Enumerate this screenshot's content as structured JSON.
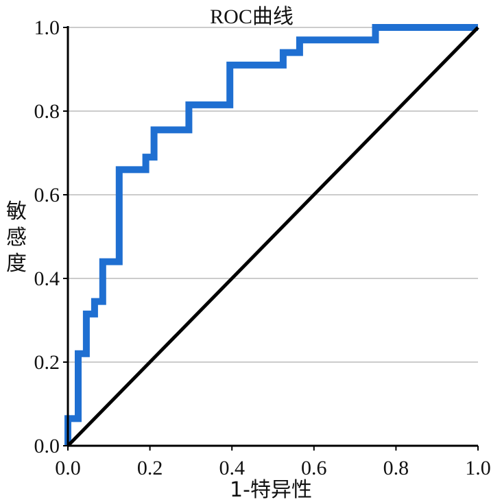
{
  "chart_data": {
    "type": "line",
    "title": "ROC曲线",
    "xlabel": "1-特异性",
    "ylabel": "敏感度",
    "xlim": [
      0,
      1
    ],
    "ylim": [
      0,
      1
    ],
    "xticks": [
      "0.0",
      "0.2",
      "0.4",
      "0.6",
      "0.8",
      "1.0"
    ],
    "yticks": [
      "0.0",
      "0.2",
      "0.4",
      "0.6",
      "0.8",
      "1.0"
    ],
    "grid": "horizontal",
    "series": [
      {
        "color": "#1f6fd1",
        "x": [
          0.0,
          0.0,
          0.025,
          0.025,
          0.045,
          0.045,
          0.065,
          0.065,
          0.085,
          0.085,
          0.125,
          0.125,
          0.19,
          0.19,
          0.21,
          0.21,
          0.295,
          0.295,
          0.395,
          0.395,
          0.525,
          0.525,
          0.565,
          0.565,
          0.75,
          0.75,
          1.0
        ],
        "y": [
          0.0,
          0.065,
          0.065,
          0.22,
          0.22,
          0.315,
          0.315,
          0.345,
          0.345,
          0.44,
          0.44,
          0.66,
          0.66,
          0.69,
          0.69,
          0.755,
          0.755,
          0.815,
          0.815,
          0.91,
          0.91,
          0.94,
          0.94,
          0.97,
          0.97,
          1.0,
          1.0
        ]
      },
      {
        "color": "#000000",
        "x": [
          0.0,
          1.0
        ],
        "y": [
          0.0,
          1.0
        ]
      }
    ]
  }
}
